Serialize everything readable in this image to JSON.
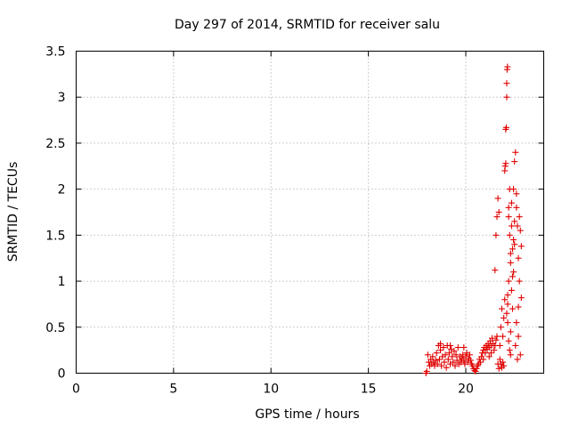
{
  "chart_data": {
    "type": "scatter",
    "title": "Day 297 of 2014, SRMTID for receiver salu",
    "xlabel": "GPS time / hours",
    "ylabel": "SRMTID / TECUs",
    "xlim": [
      0,
      24
    ],
    "ylim": [
      0,
      3.5
    ],
    "xticks": [
      "0",
      "5",
      "10",
      "15",
      "20"
    ],
    "yticks": [
      "0",
      "0.5",
      "1",
      "1.5",
      "2",
      "2.5",
      "3",
      "3.5"
    ],
    "grid": true,
    "legend": "none",
    "marker": "plus",
    "color": "#e00000",
    "series": [
      {
        "points": [
          [
            17.95,
            0.0
          ],
          [
            18.0,
            0.02
          ],
          [
            18.05,
            0.2
          ],
          [
            18.1,
            0.12
          ],
          [
            18.15,
            0.08
          ],
          [
            18.2,
            0.15
          ],
          [
            18.25,
            0.1
          ],
          [
            18.3,
            0.18
          ],
          [
            18.35,
            0.12
          ],
          [
            18.4,
            0.08
          ],
          [
            18.45,
            0.14
          ],
          [
            18.5,
            0.22
          ],
          [
            18.55,
            0.1
          ],
          [
            18.6,
            0.3
          ],
          [
            18.65,
            0.15
          ],
          [
            18.7,
            0.25
          ],
          [
            18.75,
            0.08
          ],
          [
            18.8,
            0.18
          ],
          [
            18.85,
            0.28
          ],
          [
            18.9,
            0.12
          ],
          [
            18.95,
            0.2
          ],
          [
            19.0,
            0.06
          ],
          [
            19.05,
            0.3
          ],
          [
            19.1,
            0.15
          ],
          [
            19.15,
            0.22
          ],
          [
            19.2,
            0.1
          ],
          [
            19.25,
            0.26
          ],
          [
            19.3,
            0.18
          ],
          [
            19.35,
            0.12
          ],
          [
            19.4,
            0.24
          ],
          [
            19.45,
            0.08
          ],
          [
            19.5,
            0.2
          ],
          [
            19.55,
            0.14
          ],
          [
            19.6,
            0.28
          ],
          [
            19.65,
            0.1
          ],
          [
            19.7,
            0.18
          ],
          [
            19.75,
            0.12
          ],
          [
            19.8,
            0.16
          ],
          [
            19.85,
            0.2
          ],
          [
            19.9,
            0.14
          ],
          [
            19.95,
            0.1
          ],
          [
            20.0,
            0.18
          ],
          [
            20.05,
            0.22
          ],
          [
            20.1,
            0.12
          ],
          [
            20.15,
            0.16
          ],
          [
            20.2,
            0.2
          ],
          [
            20.25,
            0.14
          ],
          [
            20.3,
            0.1
          ],
          [
            20.35,
            0.08
          ],
          [
            20.4,
            0.05
          ],
          [
            20.45,
            0.03
          ],
          [
            20.5,
            0.02
          ],
          [
            20.55,
            0.05
          ],
          [
            20.6,
            0.08
          ],
          [
            20.65,
            0.1
          ],
          [
            20.7,
            0.15
          ],
          [
            20.75,
            0.12
          ],
          [
            20.8,
            0.18
          ],
          [
            20.85,
            0.22
          ],
          [
            20.9,
            0.25
          ],
          [
            20.95,
            0.28
          ],
          [
            21.0,
            0.22
          ],
          [
            21.05,
            0.3
          ],
          [
            21.1,
            0.26
          ],
          [
            21.15,
            0.32
          ],
          [
            21.2,
            0.28
          ],
          [
            21.25,
            0.35
          ],
          [
            21.3,
            0.3
          ],
          [
            21.35,
            0.38
          ],
          [
            21.4,
            0.32
          ],
          [
            21.45,
            0.25
          ],
          [
            21.5,
            0.3
          ],
          [
            21.55,
            0.36
          ],
          [
            21.6,
            0.4
          ],
          [
            21.65,
            0.1
          ],
          [
            21.7,
            0.05
          ],
          [
            21.75,
            0.15
          ],
          [
            21.8,
            0.1
          ],
          [
            21.85,
            0.06
          ],
          [
            21.9,
            0.12
          ],
          [
            21.95,
            0.08
          ],
          [
            21.5,
            1.12
          ],
          [
            21.55,
            1.5
          ],
          [
            21.6,
            1.7
          ],
          [
            21.65,
            1.9
          ],
          [
            21.7,
            1.75
          ],
          [
            21.75,
            0.3
          ],
          [
            21.8,
            0.5
          ],
          [
            21.85,
            0.7
          ],
          [
            21.9,
            0.4
          ],
          [
            21.95,
            0.6
          ],
          [
            22.0,
            0.8
          ],
          [
            22.0,
            2.2
          ],
          [
            22.02,
            2.25
          ],
          [
            22.05,
            2.28
          ],
          [
            22.05,
            2.65
          ],
          [
            22.08,
            2.67
          ],
          [
            22.1,
            3.0
          ],
          [
            22.1,
            3.15
          ],
          [
            22.12,
            3.3
          ],
          [
            22.14,
            3.33
          ],
          [
            22.15,
            0.75
          ],
          [
            22.15,
            0.85
          ],
          [
            22.2,
            1.8
          ],
          [
            22.2,
            1.0
          ],
          [
            22.25,
            1.5
          ],
          [
            22.25,
            2.0
          ],
          [
            22.3,
            1.2
          ],
          [
            22.3,
            0.45
          ],
          [
            22.3,
            0.2
          ],
          [
            22.35,
            1.85
          ],
          [
            22.35,
            1.6
          ],
          [
            22.4,
            1.35
          ],
          [
            22.4,
            0.7
          ],
          [
            22.45,
            2.0
          ],
          [
            22.45,
            1.1
          ],
          [
            22.5,
            2.3
          ],
          [
            22.5,
            1.4
          ],
          [
            22.55,
            2.4
          ],
          [
            22.55,
            0.3
          ],
          [
            22.6,
            1.8
          ],
          [
            22.6,
            0.55
          ],
          [
            22.65,
            1.6
          ],
          [
            22.65,
            0.15
          ],
          [
            22.7,
            1.25
          ],
          [
            22.7,
            0.72
          ],
          [
            22.75,
            1.7
          ],
          [
            22.75,
            1.0
          ],
          [
            22.8,
            1.55
          ],
          [
            22.8,
            0.2
          ],
          [
            22.85,
            0.82
          ],
          [
            22.85,
            1.38
          ],
          [
            22.1,
            0.65
          ],
          [
            22.15,
            0.55
          ],
          [
            22.2,
            0.35
          ],
          [
            22.25,
            0.25
          ],
          [
            22.35,
            0.9
          ],
          [
            22.4,
            1.05
          ],
          [
            22.5,
            1.65
          ],
          [
            22.6,
            1.95
          ],
          [
            22.7,
            0.4
          ],
          [
            22.2,
            1.7
          ],
          [
            22.3,
            1.3
          ],
          [
            22.45,
            1.45
          ],
          [
            21.2,
            0.18
          ],
          [
            21.3,
            0.22
          ],
          [
            20.9,
            0.15
          ],
          [
            19.2,
            0.3
          ],
          [
            18.7,
            0.32
          ],
          [
            19.9,
            0.28
          ]
        ]
      }
    ]
  }
}
